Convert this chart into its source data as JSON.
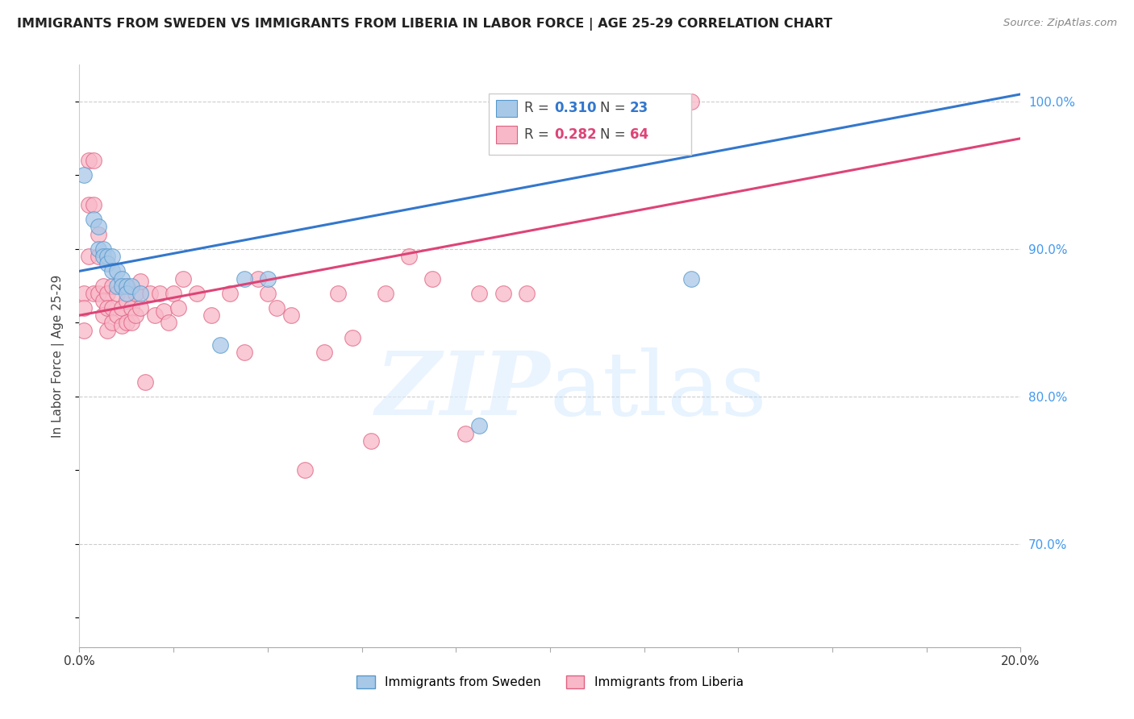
{
  "title": "IMMIGRANTS FROM SWEDEN VS IMMIGRANTS FROM LIBERIA IN LABOR FORCE | AGE 25-29 CORRELATION CHART",
  "source": "Source: ZipAtlas.com",
  "ylabel": "In Labor Force | Age 25-29",
  "x_min": 0.0,
  "x_max": 0.2,
  "y_min": 0.63,
  "y_max": 1.025,
  "sweden_color": "#a8c8e8",
  "sweden_edge": "#5599cc",
  "liberia_color": "#f8b8c8",
  "liberia_edge": "#e06080",
  "trend_blue": "#3377cc",
  "trend_pink": "#dd4477",
  "sweden_R": "0.310",
  "sweden_N": "23",
  "liberia_R": "0.282",
  "liberia_N": "64",
  "sweden_x": [
    0.001,
    0.003,
    0.004,
    0.004,
    0.005,
    0.005,
    0.006,
    0.006,
    0.007,
    0.007,
    0.008,
    0.008,
    0.009,
    0.009,
    0.01,
    0.01,
    0.011,
    0.013,
    0.03,
    0.035,
    0.04,
    0.085,
    0.13
  ],
  "sweden_y": [
    0.95,
    0.92,
    0.915,
    0.9,
    0.9,
    0.895,
    0.895,
    0.89,
    0.895,
    0.885,
    0.885,
    0.875,
    0.88,
    0.875,
    0.875,
    0.87,
    0.875,
    0.87,
    0.835,
    0.88,
    0.88,
    0.78,
    0.88
  ],
  "liberia_x": [
    0.001,
    0.001,
    0.001,
    0.002,
    0.002,
    0.002,
    0.003,
    0.003,
    0.003,
    0.004,
    0.004,
    0.004,
    0.005,
    0.005,
    0.005,
    0.006,
    0.006,
    0.006,
    0.007,
    0.007,
    0.007,
    0.008,
    0.008,
    0.009,
    0.009,
    0.01,
    0.01,
    0.01,
    0.011,
    0.011,
    0.012,
    0.012,
    0.013,
    0.013,
    0.014,
    0.015,
    0.016,
    0.017,
    0.018,
    0.019,
    0.02,
    0.021,
    0.022,
    0.025,
    0.028,
    0.032,
    0.035,
    0.038,
    0.04,
    0.042,
    0.045,
    0.048,
    0.052,
    0.055,
    0.058,
    0.062,
    0.065,
    0.07,
    0.075,
    0.082,
    0.085,
    0.09,
    0.095,
    0.13
  ],
  "liberia_y": [
    0.87,
    0.86,
    0.845,
    0.96,
    0.93,
    0.895,
    0.96,
    0.93,
    0.87,
    0.91,
    0.895,
    0.87,
    0.875,
    0.865,
    0.855,
    0.87,
    0.86,
    0.845,
    0.875,
    0.86,
    0.85,
    0.87,
    0.855,
    0.86,
    0.848,
    0.875,
    0.865,
    0.85,
    0.86,
    0.85,
    0.87,
    0.855,
    0.878,
    0.86,
    0.81,
    0.87,
    0.855,
    0.87,
    0.858,
    0.85,
    0.87,
    0.86,
    0.88,
    0.87,
    0.855,
    0.87,
    0.83,
    0.88,
    0.87,
    0.86,
    0.855,
    0.75,
    0.83,
    0.87,
    0.84,
    0.77,
    0.87,
    0.895,
    0.88,
    0.775,
    0.87,
    0.87,
    0.87,
    1.0
  ]
}
